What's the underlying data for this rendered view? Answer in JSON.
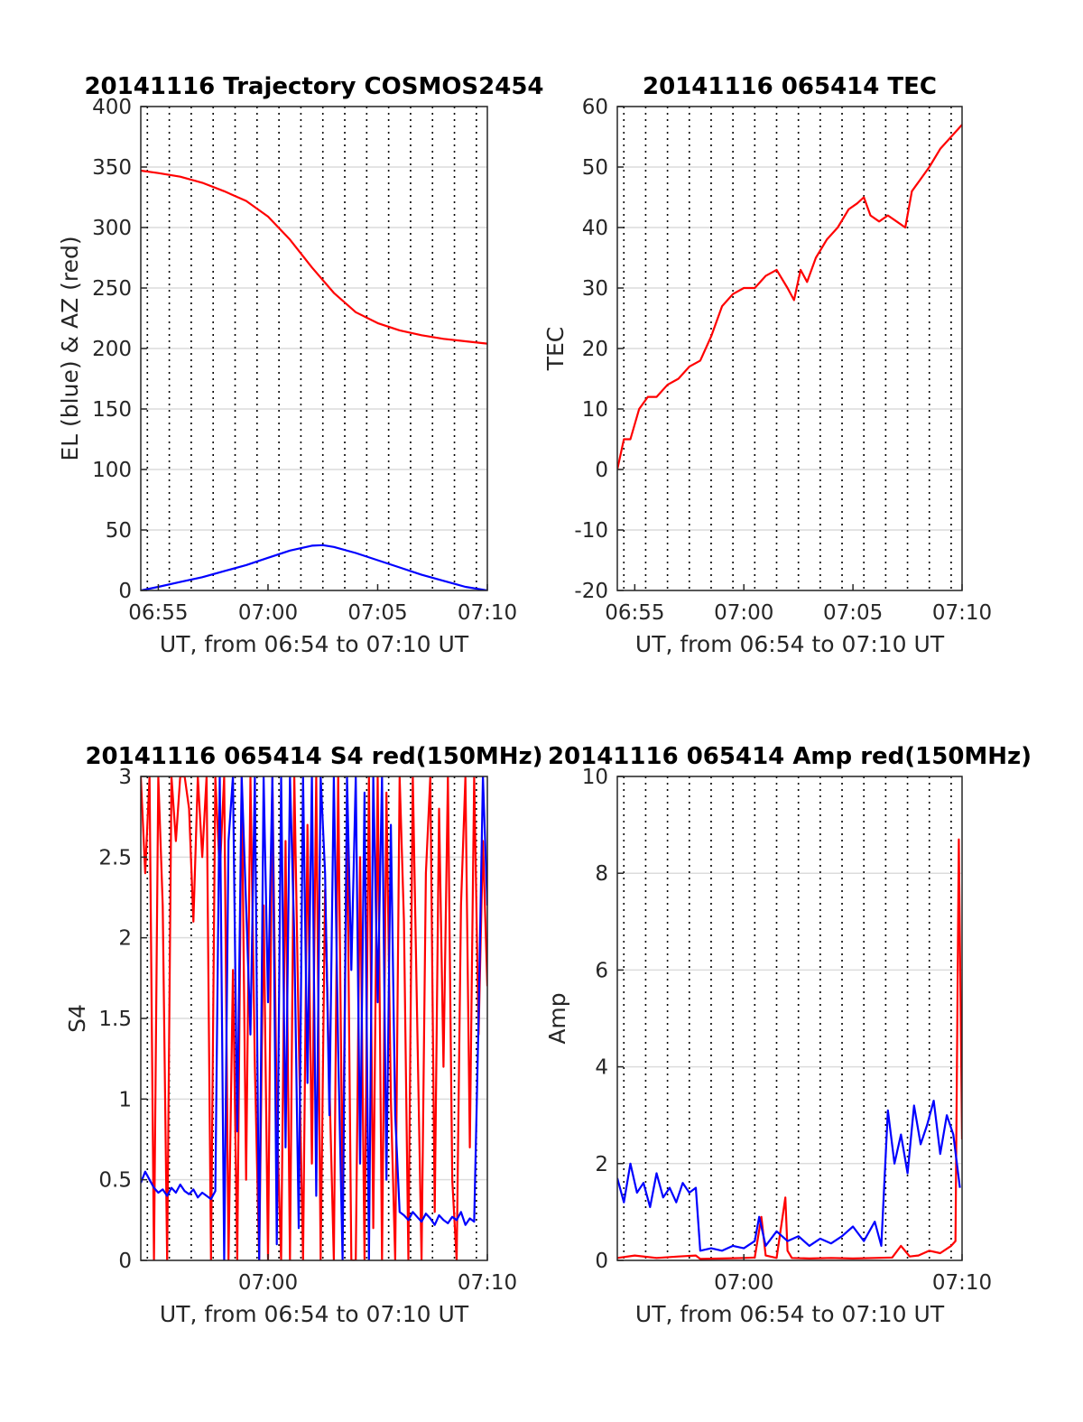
{
  "chart_data": [
    {
      "type": "line",
      "title": "20141116 Trajectory COSMOS2454",
      "xlabel": "UT, from 06:54 to 07:10 UT",
      "ylabel": "EL (blue) & AZ (red)",
      "xlim": [
        414.2,
        430
      ],
      "ylim": [
        0,
        400
      ],
      "x_ticks": [
        415,
        420,
        425,
        430
      ],
      "x_tick_labels": [
        "06:55",
        "07:00",
        "07:05",
        "07:10"
      ],
      "y_ticks": [
        0,
        50,
        100,
        150,
        200,
        250,
        300,
        350,
        400
      ],
      "y_tick_labels": [
        "0",
        "50",
        "100",
        "150",
        "200",
        "250",
        "300",
        "350",
        "400"
      ],
      "grid": true,
      "series": [
        {
          "color": "#ff0000",
          "x": [
            414.2,
            415,
            416,
            417,
            418,
            419,
            420,
            421,
            422,
            423,
            424,
            425,
            426,
            427,
            428,
            429,
            430
          ],
          "values": [
            347,
            345,
            342,
            337,
            330,
            322,
            309,
            290,
            267,
            246,
            230,
            221,
            215,
            211,
            208,
            206,
            204
          ]
        },
        {
          "color": "#0000ff",
          "x": [
            414.2,
            415,
            416,
            417,
            418,
            419,
            420,
            421,
            422,
            422.5,
            423,
            424,
            425,
            426,
            427,
            428,
            429,
            430
          ],
          "values": [
            0,
            3,
            7,
            11,
            16,
            21,
            27,
            33,
            37,
            37.5,
            36,
            31,
            25,
            19,
            13,
            8,
            3,
            0
          ]
        }
      ]
    },
    {
      "type": "line",
      "title": "20141116 065414 TEC",
      "xlabel": "UT, from 06:54 to 07:10 UT",
      "ylabel": "TEC",
      "xlim": [
        414.2,
        430
      ],
      "ylim": [
        -20,
        60
      ],
      "x_ticks": [
        415,
        420,
        425,
        430
      ],
      "x_tick_labels": [
        "06:55",
        "07:00",
        "07:05",
        "07:10"
      ],
      "y_ticks": [
        -20,
        -10,
        0,
        10,
        20,
        30,
        40,
        50,
        60
      ],
      "y_tick_labels": [
        "-20",
        "-10",
        "0",
        "10",
        "20",
        "30",
        "40",
        "50",
        "60"
      ],
      "grid": true,
      "series": [
        {
          "color": "#ff0000",
          "x": [
            414.2,
            414.5,
            414.8,
            415.2,
            415.6,
            416.0,
            416.5,
            417.0,
            417.5,
            418.0,
            418.5,
            419.0,
            419.5,
            420.0,
            420.5,
            421.0,
            421.5,
            422.0,
            422.3,
            422.6,
            422.9,
            423.3,
            423.8,
            424.3,
            424.8,
            425.2,
            425.5,
            425.8,
            426.2,
            426.6,
            427.0,
            427.4,
            427.7,
            428.1,
            428.5,
            429.0,
            429.5,
            430.0
          ],
          "values": [
            0,
            5,
            5,
            10,
            12,
            12,
            14,
            15,
            17,
            18,
            22,
            27,
            29,
            30,
            30,
            32,
            33,
            30,
            28,
            33,
            31,
            35,
            38,
            40,
            43,
            44,
            45,
            42,
            41,
            42,
            41,
            40,
            46,
            48,
            50,
            53,
            55,
            57
          ]
        }
      ]
    },
    {
      "type": "line",
      "title": "20141116 065414 S4 red(150MHz)",
      "xlabel": "UT, from 06:54 to 07:10 UT",
      "ylabel": "S4",
      "xlim": [
        414.2,
        430
      ],
      "ylim": [
        0,
        3
      ],
      "x_ticks": [
        420,
        430
      ],
      "x_tick_labels": [
        "07:00",
        "07:10"
      ],
      "y_ticks": [
        0,
        0.5,
        1,
        1.5,
        2,
        2.5,
        3
      ],
      "y_tick_labels": [
        "0",
        "0.5",
        "1",
        "1.5",
        "2",
        "2.5",
        "3"
      ],
      "grid": true,
      "series": [
        {
          "color": "#ff0000",
          "x": [
            414.2,
            414.4,
            414.6,
            414.8,
            415.0,
            415.2,
            415.4,
            415.6,
            415.8,
            416.0,
            416.2,
            416.4,
            416.6,
            416.8,
            417.0,
            417.2,
            417.4,
            417.6,
            417.8,
            418.0,
            418.2,
            418.4,
            418.6,
            418.8,
            419.0,
            419.2,
            419.4,
            419.6,
            419.8,
            420.0,
            420.2,
            420.4,
            420.6,
            420.8,
            421.0,
            421.2,
            421.4,
            421.6,
            421.8,
            422.0,
            422.2,
            422.4,
            422.6,
            422.8,
            423.0,
            423.2,
            423.4,
            423.6,
            423.8,
            424.0,
            424.2,
            424.4,
            424.6,
            424.8,
            425.0,
            425.2,
            425.4,
            425.6,
            425.8,
            426.0,
            426.2,
            426.4,
            426.6,
            426.8,
            427.0,
            427.2,
            427.4,
            427.6,
            427.8,
            428.0,
            428.2,
            428.4,
            428.6,
            428.8,
            429.0,
            429.2,
            429.4,
            429.6,
            429.8,
            430.0
          ],
          "values": [
            3,
            2.4,
            3,
            0,
            3,
            2.2,
            0,
            3,
            2.6,
            3,
            3,
            2.8,
            2.1,
            3,
            2.5,
            3,
            0,
            3,
            2.4,
            3,
            0,
            1.8,
            0,
            3,
            0.5,
            3,
            1.2,
            0,
            2.2,
            0,
            3,
            0.9,
            0,
            2.6,
            0,
            3,
            1.4,
            0,
            2.7,
            0.6,
            3,
            0,
            2.3,
            1.1,
            0,
            3,
            0.4,
            2.8,
            0,
            0,
            2.5,
            0,
            3,
            0.2,
            3,
            0,
            2.9,
            1.0,
            0,
            3,
            2.1,
            0,
            3,
            1.5,
            0,
            2.4,
            3,
            0.3,
            2.8,
            1.2,
            3,
            0.5,
            0,
            2.2,
            3,
            0.7,
            3,
            1.4,
            2.6,
            1.7
          ]
        },
        {
          "color": "#0000ff",
          "x": [
            414.2,
            414.4,
            414.6,
            414.8,
            415.0,
            415.2,
            415.4,
            415.6,
            415.8,
            416.0,
            416.2,
            416.4,
            416.6,
            416.8,
            417.0,
            417.2,
            417.4,
            417.6,
            417.8,
            418.0,
            418.2,
            418.4,
            418.6,
            418.8,
            419.0,
            419.2,
            419.4,
            419.6,
            419.8,
            420.0,
            420.2,
            420.4,
            420.6,
            420.8,
            421.0,
            421.2,
            421.4,
            421.6,
            421.8,
            422.0,
            422.2,
            422.4,
            422.6,
            422.8,
            423.0,
            423.2,
            423.4,
            423.6,
            423.8,
            424.0,
            424.2,
            424.4,
            424.6,
            424.8,
            425.0,
            425.2,
            425.4,
            425.6,
            425.8,
            426.0,
            426.2,
            426.4,
            426.6,
            426.8,
            427.0,
            427.2,
            427.4,
            427.6,
            427.8,
            428.0,
            428.2,
            428.4,
            428.6,
            428.8,
            429.0,
            429.2,
            429.4,
            429.6,
            429.8,
            430.0
          ],
          "values": [
            0.48,
            0.55,
            0.5,
            0.45,
            0.42,
            0.44,
            0.4,
            0.45,
            0.42,
            0.47,
            0.43,
            0.41,
            0.44,
            0.39,
            0.42,
            0.4,
            0.38,
            0.43,
            3,
            0,
            2.6,
            3,
            0.8,
            3,
            2.2,
            1.4,
            3,
            0,
            3,
            1.6,
            3,
            0.1,
            3,
            0.7,
            3,
            2.0,
            0.2,
            3,
            1.1,
            3,
            0.4,
            3,
            2.4,
            0.9,
            3,
            1.3,
            0,
            3,
            1.8,
            3,
            0.6,
            2.9,
            0,
            3,
            1.6,
            3,
            0.5,
            2.7,
            0.9,
            0.3,
            0.28,
            0.25,
            0.3,
            0.27,
            0.24,
            0.29,
            0.26,
            0.22,
            0.28,
            0.25,
            0.23,
            0.27,
            0.25,
            0.3,
            0.22,
            0.26,
            0.24,
            1.5,
            3,
            2.2
          ]
        }
      ]
    },
    {
      "type": "line",
      "title": "20141116 065414 Amp red(150MHz)",
      "xlabel": "UT, from 06:54 to 07:10 UT",
      "ylabel": "Amp",
      "xlim": [
        414.2,
        430
      ],
      "ylim": [
        0,
        10
      ],
      "x_ticks": [
        420,
        430
      ],
      "x_tick_labels": [
        "07:00",
        "07:10"
      ],
      "y_ticks": [
        0,
        2,
        4,
        6,
        8,
        10
      ],
      "y_tick_labels": [
        "0",
        "2",
        "4",
        "6",
        "8",
        "10"
      ],
      "grid": true,
      "series": [
        {
          "color": "#ff0000",
          "x": [
            414.2,
            415,
            416,
            417,
            417.8,
            418,
            419,
            420,
            420.5,
            420.8,
            421,
            421.5,
            421.9,
            422,
            422.2,
            423,
            424,
            425,
            426,
            426.8,
            427.2,
            427.6,
            428,
            428.5,
            429,
            429.5,
            429.7,
            429.85,
            430
          ],
          "values": [
            0.05,
            0.1,
            0.05,
            0.08,
            0.1,
            0.03,
            0.04,
            0.05,
            0.06,
            0.9,
            0.1,
            0.05,
            1.3,
            0.2,
            0.05,
            0.04,
            0.05,
            0.04,
            0.05,
            0.06,
            0.3,
            0.08,
            0.1,
            0.2,
            0.15,
            0.3,
            0.4,
            8.7,
            2.5
          ]
        },
        {
          "color": "#0000ff",
          "x": [
            414.2,
            414.5,
            414.8,
            415.1,
            415.4,
            415.7,
            416.0,
            416.3,
            416.6,
            416.9,
            417.2,
            417.5,
            417.8,
            418.0,
            418.5,
            419.0,
            419.5,
            420.0,
            420.5,
            420.7,
            421.0,
            421.5,
            422.0,
            422.5,
            423.0,
            423.5,
            424.0,
            424.5,
            425.0,
            425.5,
            426.0,
            426.3,
            426.6,
            426.9,
            427.2,
            427.5,
            427.8,
            428.1,
            428.4,
            428.7,
            429.0,
            429.3,
            429.6,
            429.9
          ],
          "values": [
            1.7,
            1.2,
            2.0,
            1.4,
            1.6,
            1.1,
            1.8,
            1.3,
            1.5,
            1.2,
            1.6,
            1.4,
            1.5,
            0.2,
            0.25,
            0.2,
            0.3,
            0.25,
            0.4,
            0.9,
            0.3,
            0.6,
            0.4,
            0.5,
            0.3,
            0.45,
            0.35,
            0.5,
            0.7,
            0.4,
            0.8,
            0.3,
            3.1,
            2.0,
            2.6,
            1.8,
            3.2,
            2.4,
            2.8,
            3.3,
            2.2,
            3.0,
            2.6,
            1.5
          ]
        }
      ]
    }
  ]
}
